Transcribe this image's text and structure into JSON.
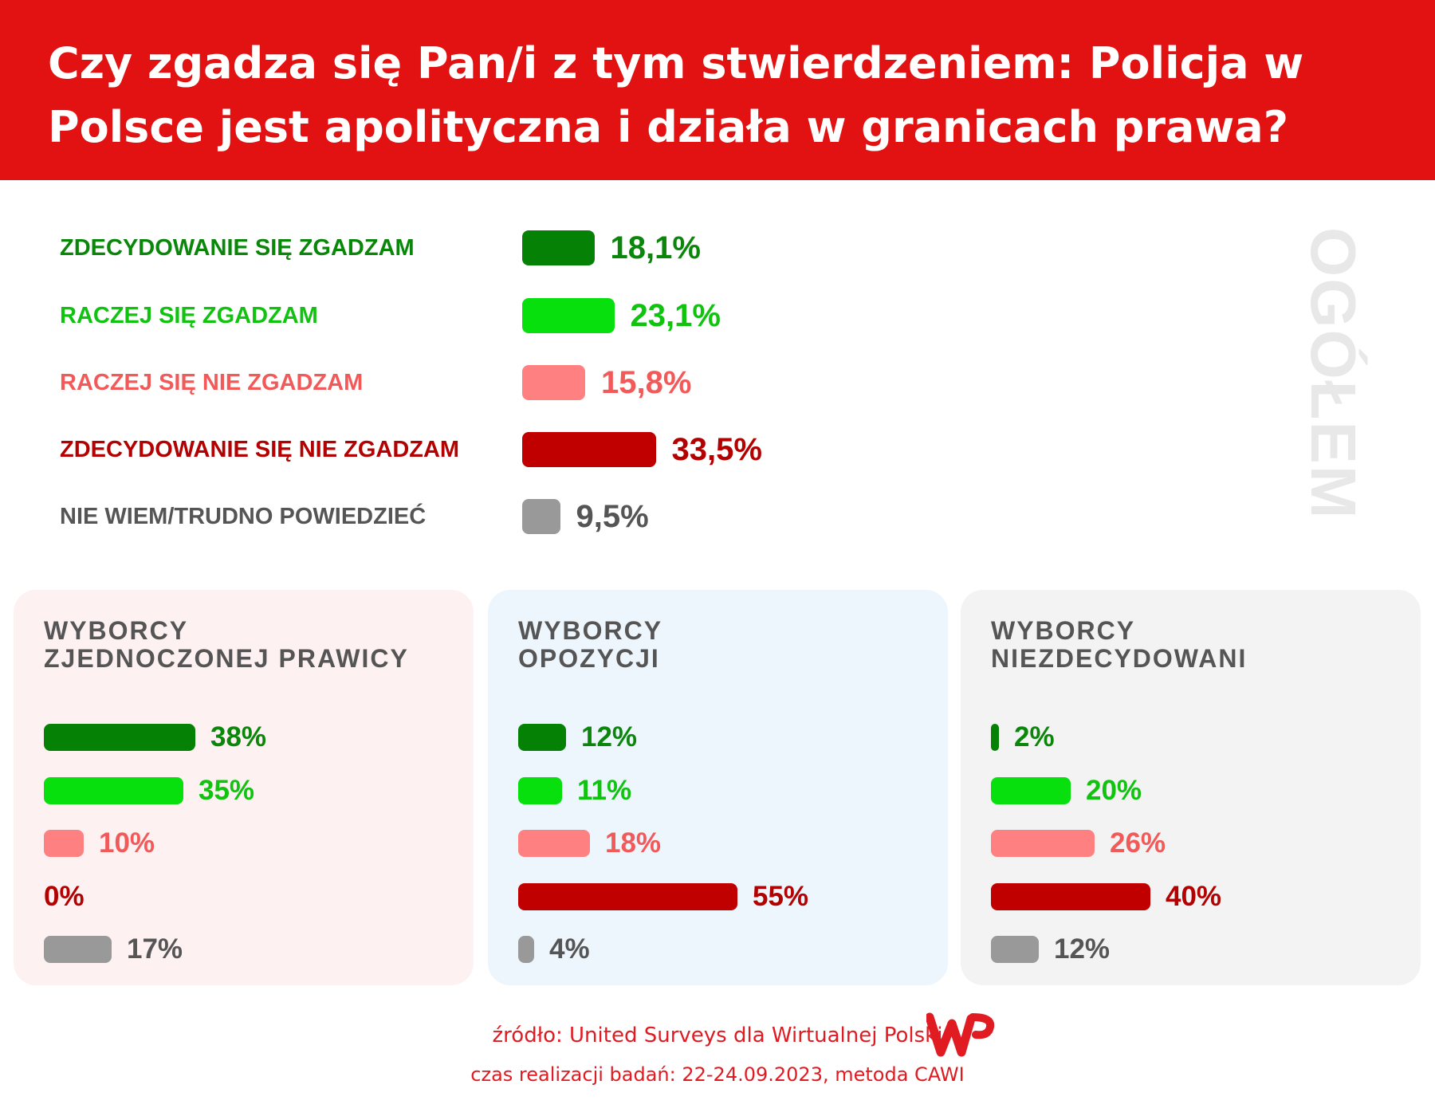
{
  "header": {
    "title": "Czy zgadza się Pan/i z tym stwierdzeniem: Policja w Polsce jest apolityczna i działa w granicach prawa?"
  },
  "colors": {
    "header": "#e21212",
    "strong_agree": "#058205",
    "agree": "#08e00e",
    "disagree": "#ff8080",
    "strong_disagree": "#c00000",
    "dont_know": "#999999"
  },
  "overall": {
    "label": "OGÓŁEM"
  },
  "chart_data": {
    "type": "bar",
    "title": "Czy zgadza się Pan/i z tym stwierdzeniem: Policja w Polsce jest apolityczna i działa w granicach prawa?",
    "categories": [
      "ZDECYDOWANIE SIĘ ZGADZAM",
      "RACZEJ SIĘ ZGADZAM",
      "RACZEJ SIĘ NIE ZGADZAM",
      "ZDECYDOWANIE SIĘ NIE ZGADZAM",
      "NIE WIEM/TRUDNO POWIEDZIEĆ"
    ],
    "value_labels_overall": [
      "18,1%",
      "23,1%",
      "15,8%",
      "33,5%",
      "9,5%"
    ],
    "series": [
      {
        "name": "OGÓŁEM",
        "values": [
          18.1,
          23.1,
          15.8,
          33.5,
          9.5
        ]
      },
      {
        "name": "WYBORCY ZJEDNOCZONEJ PRAWICY",
        "values": [
          38,
          35,
          10,
          0,
          17
        ]
      },
      {
        "name": "WYBORCY OPOZYCJI",
        "values": [
          12,
          11,
          18,
          55,
          4
        ]
      },
      {
        "name": "WYBORCY NIEZDECYDOWANI",
        "values": [
          2,
          20,
          26,
          40,
          12
        ]
      }
    ],
    "unit": "%"
  },
  "panels": [
    {
      "title_lines": [
        "WYBORCY",
        "ZJEDNOCZONEJ PRAWICY"
      ],
      "labels": [
        "38%",
        "35%",
        "10%",
        "0%",
        "17%"
      ]
    },
    {
      "title_lines": [
        "WYBORCY",
        "OPOZYCJI"
      ],
      "labels": [
        "12%",
        "11%",
        "18%",
        "55%",
        "4%"
      ]
    },
    {
      "title_lines": [
        "WYBORCY",
        "NIEZDECYDOWANI"
      ],
      "labels": [
        "2%",
        "20%",
        "26%",
        "40%",
        "12%"
      ]
    }
  ],
  "footer": {
    "source": "źródło: United Surveys dla Wirtualnej Polski",
    "method": "czas realizacji badań: 22-24.09.2023, metoda CAWI",
    "logo_text": "WP"
  }
}
